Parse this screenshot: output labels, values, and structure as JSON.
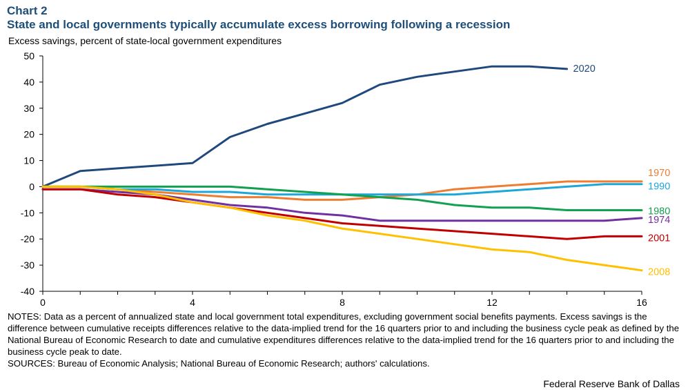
{
  "header": {
    "chart_label": "Chart 2",
    "title": "State and local governments typically accumulate excess borrowing following a recession"
  },
  "footer": {
    "notes": "NOTES: Data as a percent of annualized state and local government total expenditures, excluding government social benefits payments. Excess savings is the difference between cumulative receipts differences relative to the data-implied trend for the 16 quarters prior to and including the business cycle peak as defined by the National Bureau of Economic Research to date and cumulative expenditures differences relative to the data-implied trend for the 16 quarters prior to and including the business cycle peak to date.",
    "sources": "SOURCES: Bureau of Economic Analysis; National Bureau of Economic Research; authors' calculations.",
    "credit": "Federal Reserve Bank of Dallas"
  },
  "chart_data": {
    "type": "line",
    "title": "State and local governments typically accumulate excess borrowing following a recession",
    "xlabel": "",
    "ylabel": "Excess savings, percent of state-local government expenditures",
    "xlim": [
      0,
      16
    ],
    "ylim": [
      -40,
      50
    ],
    "xticks": [
      0,
      4,
      8,
      12,
      16
    ],
    "yticks": [
      50,
      40,
      30,
      20,
      10,
      0,
      -10,
      -20,
      -30,
      -40
    ],
    "grid": false,
    "legend": "direct labels at right end of each line",
    "series": [
      {
        "name": "2020",
        "color": "#1f497d",
        "x": [
          0,
          1,
          2,
          3,
          4,
          5,
          6,
          7,
          8,
          9,
          10,
          11,
          12,
          13,
          14
        ],
        "y": [
          0,
          6,
          7,
          8,
          9,
          19,
          24,
          28,
          32,
          39,
          42,
          44,
          46,
          46,
          45
        ]
      },
      {
        "name": "1970",
        "color": "#ed7d31",
        "x": [
          0,
          1,
          2,
          3,
          4,
          5,
          6,
          7,
          8,
          9,
          10,
          11,
          12,
          13,
          14,
          15,
          16
        ],
        "y": [
          0,
          0,
          -1,
          -2,
          -3,
          -4,
          -4,
          -5,
          -5,
          -4,
          -3,
          -1,
          0,
          1,
          2,
          2,
          2
        ]
      },
      {
        "name": "1990",
        "color": "#1ca7d8",
        "x": [
          0,
          1,
          2,
          3,
          4,
          5,
          6,
          7,
          8,
          9,
          10,
          11,
          12,
          13,
          14,
          15,
          16
        ],
        "y": [
          0,
          0,
          -1,
          -1,
          -2,
          -2,
          -3,
          -3,
          -3,
          -3,
          -3,
          -3,
          -2,
          -1,
          0,
          1,
          1
        ]
      },
      {
        "name": "1980",
        "color": "#12a150",
        "x": [
          0,
          1,
          2,
          3,
          4,
          5,
          6,
          7,
          8,
          9,
          10,
          11,
          12,
          13,
          14,
          15,
          16
        ],
        "y": [
          0,
          0,
          0,
          0,
          0,
          0,
          -1,
          -2,
          -3,
          -4,
          -5,
          -7,
          -8,
          -8,
          -9,
          -9,
          -9
        ]
      },
      {
        "name": "1974",
        "color": "#7030a0",
        "x": [
          0,
          1,
          2,
          3,
          4,
          5,
          6,
          7,
          8,
          9,
          10,
          11,
          12,
          13,
          14,
          15,
          16
        ],
        "y": [
          -1,
          -1,
          -2,
          -3,
          -5,
          -7,
          -8,
          -10,
          -11,
          -13,
          -13,
          -13,
          -13,
          -13,
          -13,
          -13,
          -12
        ]
      },
      {
        "name": "2001",
        "color": "#c00000",
        "x": [
          0,
          1,
          2,
          3,
          4,
          5,
          6,
          7,
          8,
          9,
          10,
          11,
          12,
          13,
          14,
          15,
          16
        ],
        "y": [
          -1,
          -1,
          -3,
          -4,
          -6,
          -8,
          -10,
          -12,
          -14,
          -15,
          -16,
          -17,
          -18,
          -19,
          -20,
          -19,
          -19
        ]
      },
      {
        "name": "2008",
        "color": "#ffc000",
        "x": [
          0,
          1,
          2,
          3,
          4,
          5,
          6,
          7,
          8,
          9,
          10,
          11,
          12,
          13,
          14,
          15,
          16
        ],
        "y": [
          0,
          0,
          -1,
          -3,
          -6,
          -8,
          -11,
          -13,
          -16,
          -18,
          -20,
          -22,
          -24,
          -25,
          -28,
          -30,
          -32
        ]
      }
    ]
  }
}
